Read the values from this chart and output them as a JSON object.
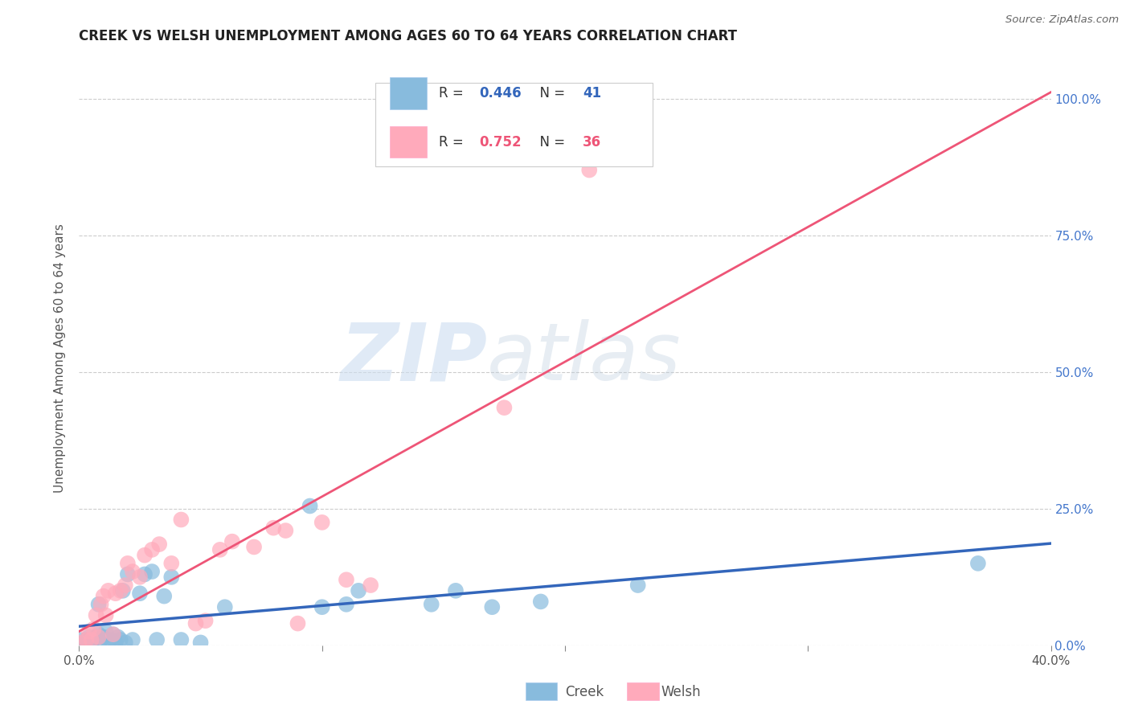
{
  "title": "CREEK VS WELSH UNEMPLOYMENT AMONG AGES 60 TO 64 YEARS CORRELATION CHART",
  "source": "Source: ZipAtlas.com",
  "ylabel": "Unemployment Among Ages 60 to 64 years",
  "xlim": [
    0.0,
    0.4
  ],
  "ylim": [
    0.0,
    1.05
  ],
  "xtick_positions": [
    0.0,
    0.4
  ],
  "xtick_labels": [
    "0.0%",
    "40.0%"
  ],
  "yticks": [
    0.0,
    0.25,
    0.5,
    0.75,
    1.0
  ],
  "ytick_labels": [
    "0.0%",
    "25.0%",
    "50.0%",
    "75.0%",
    "100.0%"
  ],
  "creek_color": "#88BBDD",
  "welsh_color": "#FFAABB",
  "creek_line_color": "#3366BB",
  "welsh_line_color": "#EE5577",
  "creek_R": 0.446,
  "creek_N": 41,
  "welsh_R": 0.752,
  "welsh_N": 36,
  "background_color": "#FFFFFF",
  "creek_x": [
    0.0,
    0.002,
    0.003,
    0.004,
    0.005,
    0.006,
    0.007,
    0.008,
    0.008,
    0.009,
    0.01,
    0.011,
    0.012,
    0.013,
    0.014,
    0.015,
    0.016,
    0.017,
    0.018,
    0.019,
    0.02,
    0.022,
    0.025,
    0.027,
    0.03,
    0.032,
    0.035,
    0.038,
    0.042,
    0.05,
    0.06,
    0.095,
    0.1,
    0.11,
    0.115,
    0.145,
    0.155,
    0.17,
    0.19,
    0.23,
    0.37
  ],
  "creek_y": [
    0.01,
    0.005,
    0.01,
    0.015,
    0.005,
    0.01,
    0.015,
    0.02,
    0.075,
    0.01,
    0.015,
    0.025,
    0.005,
    0.01,
    0.02,
    0.005,
    0.015,
    0.01,
    0.1,
    0.005,
    0.13,
    0.01,
    0.095,
    0.13,
    0.135,
    0.01,
    0.09,
    0.125,
    0.01,
    0.005,
    0.07,
    0.255,
    0.07,
    0.075,
    0.1,
    0.075,
    0.1,
    0.07,
    0.08,
    0.11,
    0.15
  ],
  "welsh_x": [
    0.0,
    0.003,
    0.004,
    0.005,
    0.006,
    0.007,
    0.008,
    0.009,
    0.01,
    0.011,
    0.012,
    0.014,
    0.015,
    0.017,
    0.019,
    0.02,
    0.022,
    0.025,
    0.027,
    0.03,
    0.033,
    0.038,
    0.042,
    0.048,
    0.052,
    0.058,
    0.063,
    0.072,
    0.08,
    0.085,
    0.09,
    0.1,
    0.11,
    0.12,
    0.175,
    0.21
  ],
  "welsh_y": [
    0.005,
    0.01,
    0.025,
    0.01,
    0.03,
    0.055,
    0.015,
    0.075,
    0.09,
    0.055,
    0.1,
    0.02,
    0.095,
    0.1,
    0.11,
    0.15,
    0.135,
    0.125,
    0.165,
    0.175,
    0.185,
    0.15,
    0.23,
    0.04,
    0.045,
    0.175,
    0.19,
    0.18,
    0.215,
    0.21,
    0.04,
    0.225,
    0.12,
    0.11,
    0.435,
    0.87
  ]
}
